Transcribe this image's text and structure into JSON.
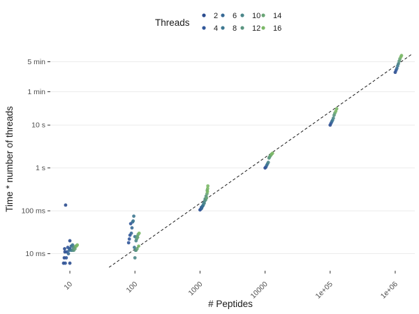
{
  "chart_data": {
    "type": "scatter",
    "title": "",
    "xlabel": "# Peptides",
    "ylabel": "Time * number of threads",
    "x_scale": "log10",
    "y_scale": "log10",
    "y_unit": "seconds",
    "xlim": [
      5,
      2000000
    ],
    "ylim": [
      0.004,
      600
    ],
    "x_ticks": [
      {
        "value": 10,
        "label": "10"
      },
      {
        "value": 100,
        "label": "100"
      },
      {
        "value": 1000,
        "label": "1000"
      },
      {
        "value": 10000,
        "label": "10000"
      },
      {
        "value": 100000,
        "label": "1e+05"
      },
      {
        "value": 1000000,
        "label": "1e+06"
      }
    ],
    "y_ticks": [
      {
        "value": 0.01,
        "label": "10 ms"
      },
      {
        "value": 0.1,
        "label": "100 ms"
      },
      {
        "value": 1,
        "label": "1 s"
      },
      {
        "value": 10,
        "label": "10 s"
      },
      {
        "value": 60,
        "label": "1 min"
      },
      {
        "value": 300,
        "label": "5 min"
      }
    ],
    "grid": true,
    "legend": {
      "title": "Threads",
      "position": "top",
      "items": [
        {
          "label": "2",
          "color": "#2b4c8f"
        },
        {
          "label": "4",
          "color": "#31579a"
        },
        {
          "label": "6",
          "color": "#386a96"
        },
        {
          "label": "8",
          "color": "#3e7891"
        },
        {
          "label": "10",
          "color": "#4c878a"
        },
        {
          "label": "12",
          "color": "#5a9580"
        },
        {
          "label": "14",
          "color": "#69a575"
        },
        {
          "label": "16",
          "color": "#7bb867"
        }
      ]
    },
    "reference_line": {
      "style": "dashed",
      "color": "#1a1a1a",
      "points": [
        [
          40,
          0.0048
        ],
        [
          1800000,
          450
        ]
      ]
    },
    "series": [
      {
        "name": "2",
        "color": "#2b4c8f",
        "x": [
          8,
          8.2,
          8.4,
          8.3,
          8.6,
          10,
          10,
          10,
          1000,
          10000,
          100000,
          1000000
        ],
        "y": [
          0.006,
          0.008,
          0.011,
          0.013,
          0.136,
          0.006,
          0.013,
          0.02,
          0.105,
          1.0,
          10,
          170
        ]
      },
      {
        "name": "4",
        "color": "#31579a",
        "x": [
          8.5,
          8.8,
          9,
          9.3,
          80,
          82,
          84,
          86,
          1030,
          1050,
          10300,
          103000,
          1030000
        ],
        "y": [
          0.006,
          0.008,
          0.011,
          0.014,
          0.018,
          0.022,
          0.027,
          0.05,
          0.11,
          0.12,
          1.05,
          11,
          190
        ]
      },
      {
        "name": "6",
        "color": "#386a96",
        "x": [
          9.5,
          9.8,
          10.5,
          88,
          90,
          92,
          1060,
          1080,
          1100,
          10600,
          106000,
          1060000
        ],
        "y": [
          0.01,
          0.012,
          0.015,
          0.03,
          0.04,
          0.055,
          0.115,
          0.125,
          0.13,
          1.15,
          12,
          210
        ]
      },
      {
        "name": "8",
        "color": "#3e7891",
        "x": [
          10.5,
          11,
          94,
          96,
          98,
          100,
          1120,
          1140,
          10900,
          109000,
          1090000
        ],
        "y": [
          0.012,
          0.016,
          0.058,
          0.075,
          0.014,
          0.025,
          0.135,
          0.15,
          1.25,
          13,
          240
        ]
      },
      {
        "name": "10",
        "color": "#4c878a",
        "x": [
          11,
          11.3,
          100,
          102,
          104,
          1160,
          1180,
          1200,
          11200,
          112000,
          1120000
        ],
        "y": [
          0.012,
          0.014,
          0.008,
          0.012,
          0.02,
          0.15,
          0.17,
          0.19,
          1.35,
          14.5,
          270
        ]
      },
      {
        "name": "12",
        "color": "#5a9580",
        "x": [
          11.5,
          11.8,
          104,
          106,
          108,
          1220,
          1240,
          11500,
          11700,
          115000,
          1150000
        ],
        "y": [
          0.012,
          0.014,
          0.012,
          0.022,
          0.025,
          0.18,
          0.22,
          1.7,
          1.8,
          17,
          310
        ]
      },
      {
        "name": "14",
        "color": "#69a575",
        "x": [
          12,
          12.3,
          108,
          110,
          112,
          1260,
          1280,
          1290,
          12000,
          12300,
          118000,
          1180000
        ],
        "y": [
          0.013,
          0.015,
          0.013,
          0.024,
          0.028,
          0.2,
          0.25,
          0.3,
          1.9,
          2.0,
          19,
          350
        ]
      },
      {
        "name": "16",
        "color": "#7bb867",
        "x": [
          12.6,
          13,
          114,
          116,
          1300,
          1310,
          1320,
          12600,
          13000,
          122000,
          126000,
          1220000,
          1250000
        ],
        "y": [
          0.015,
          0.016,
          0.015,
          0.03,
          0.28,
          0.33,
          0.38,
          2.1,
          2.2,
          21,
          24,
          390,
          420
        ]
      }
    ]
  }
}
